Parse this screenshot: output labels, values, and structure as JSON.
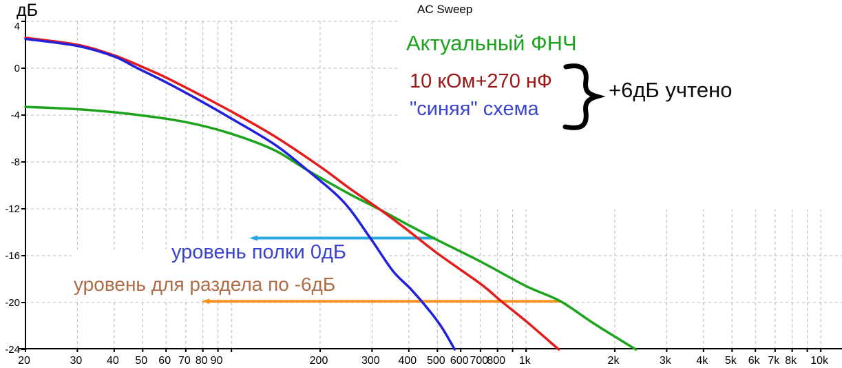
{
  "title": "AC Sweep",
  "y_axis_label": "дБ",
  "annotations": {
    "green_label": "Актуальный ФНЧ",
    "darkred_label": "10 кОм+270 нФ",
    "blue_label": "\"синяя\" схема",
    "brace_note": "+6дБ учтено",
    "shelf_label": "уровень полки 0дБ",
    "crossover_label": "уровень для раздела по -6дБ"
  },
  "colors": {
    "curve_red": "#e31b1b",
    "curve_blue": "#2121dd",
    "curve_green": "#1ca31c",
    "level_cyan": "#29abe2",
    "level_orange": "#f7941e",
    "text_blue": "#3a43cf",
    "text_darkred": "#9c1616",
    "text_brown": "#ae6d47",
    "grid": "#b3b3b3",
    "axis": "#000000"
  },
  "chart_data": {
    "type": "line",
    "title": "AC Sweep",
    "x_axis": {
      "scale": "log",
      "unit": "Hz",
      "min": 20,
      "max": 10000,
      "labeled_ticks": [
        [
          20,
          "20"
        ],
        [
          30,
          "30"
        ],
        [
          40,
          "40"
        ],
        [
          50,
          "50"
        ],
        [
          60,
          "60"
        ],
        [
          70,
          "70"
        ],
        [
          80,
          "80"
        ],
        [
          90,
          "90"
        ],
        [
          200,
          "200"
        ],
        [
          300,
          "300"
        ],
        [
          400,
          "400"
        ],
        [
          500,
          "500"
        ],
        [
          600,
          "600"
        ],
        [
          700,
          "700"
        ],
        [
          800,
          "800"
        ],
        [
          1000,
          "1k"
        ],
        [
          2000,
          "2k"
        ],
        [
          3000,
          "3k"
        ],
        [
          4000,
          "4k"
        ],
        [
          5000,
          "5k"
        ],
        [
          6000,
          "6k"
        ],
        [
          7000,
          "7k"
        ],
        [
          8000,
          "8k"
        ],
        [
          10000,
          "10k"
        ]
      ],
      "unlabeled_gridlines": [
        100,
        900,
        9000
      ]
    },
    "y_axis": {
      "unit": "дБ",
      "min": -24,
      "max": 4,
      "ticks": [
        4,
        0,
        -4,
        -8,
        -12,
        -16,
        -20,
        -24
      ],
      "gridline_levels": [
        4,
        0,
        -4,
        -8,
        -12,
        -16,
        -20
      ]
    },
    "grid": true,
    "legend": "none",
    "series": [
      {
        "name": "Актуальный ФНЧ",
        "color_key": "curve_green",
        "points": [
          [
            20,
            -3.3
          ],
          [
            30,
            -3.5
          ],
          [
            45,
            -3.9
          ],
          [
            70,
            -4.6
          ],
          [
            100,
            -5.6
          ],
          [
            140,
            -7.0
          ],
          [
            181,
            -8.7
          ],
          [
            250,
            -10.7
          ],
          [
            321,
            -12.1
          ],
          [
            400,
            -13.4
          ],
          [
            494,
            -14.6
          ],
          [
            700,
            -16.5
          ],
          [
            1000,
            -18.6
          ],
          [
            1310,
            -19.9
          ],
          [
            1700,
            -21.8
          ],
          [
            2355,
            -24.0
          ]
        ]
      },
      {
        "name": "10 кОм+270 нФ",
        "color_key": "curve_red",
        "points": [
          [
            20,
            2.6
          ],
          [
            30,
            2.0
          ],
          [
            40,
            1.1
          ],
          [
            51,
            0.0
          ],
          [
            60,
            -0.8
          ],
          [
            80,
            -2.4
          ],
          [
            100,
            -3.7
          ],
          [
            140,
            -5.8
          ],
          [
            200,
            -8.4
          ],
          [
            250,
            -10.2
          ],
          [
            321,
            -12.1
          ],
          [
            400,
            -13.9
          ],
          [
            500,
            -15.8
          ],
          [
            700,
            -18.4
          ],
          [
            825,
            -19.9
          ],
          [
            1000,
            -21.6
          ],
          [
            1290,
            -24.0
          ]
        ]
      },
      {
        "name": "\"синяя\" схема",
        "color_key": "curve_blue",
        "points": [
          [
            20,
            2.5
          ],
          [
            30,
            1.9
          ],
          [
            40,
            1.0
          ],
          [
            48,
            0.0
          ],
          [
            60,
            -1.2
          ],
          [
            80,
            -2.9
          ],
          [
            100,
            -4.3
          ],
          [
            140,
            -6.5
          ],
          [
            181,
            -8.7
          ],
          [
            240,
            -11.4
          ],
          [
            296,
            -14.5
          ],
          [
            353,
            -17.3
          ],
          [
            408,
            -18.9
          ],
          [
            470,
            -20.7
          ],
          [
            520,
            -22.2
          ],
          [
            572,
            -24.0
          ]
        ]
      }
    ],
    "level_lines": [
      {
        "name": "уровень полки 0дБ",
        "color_key": "level_cyan",
        "db": -14.5,
        "from_hz": 115,
        "to_hz": 492
      },
      {
        "name": "уровень для раздела по -6дБ",
        "color_key": "level_orange",
        "db": -19.9,
        "from_hz": 79,
        "to_hz": 1310
      }
    ]
  }
}
